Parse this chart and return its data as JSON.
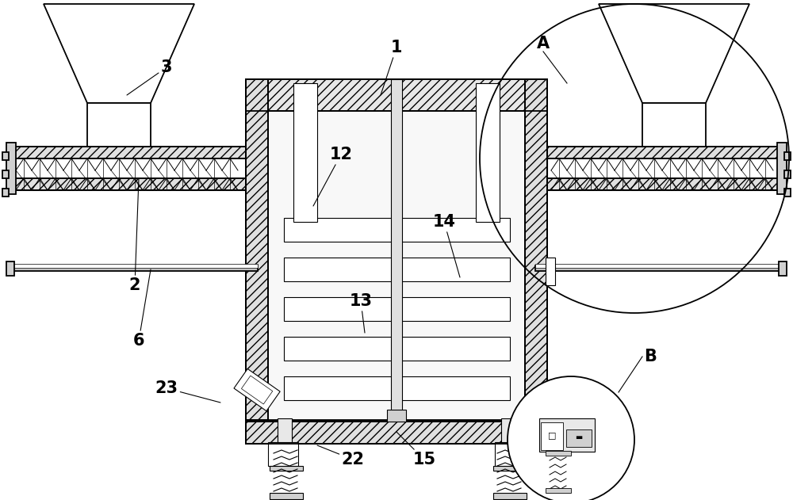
{
  "bg_color": "#ffffff",
  "lw_main": 1.3,
  "lw_thin": 0.8,
  "lw_med": 1.0,
  "label_fs": 15,
  "fig_w": 10.0,
  "fig_h": 6.31
}
